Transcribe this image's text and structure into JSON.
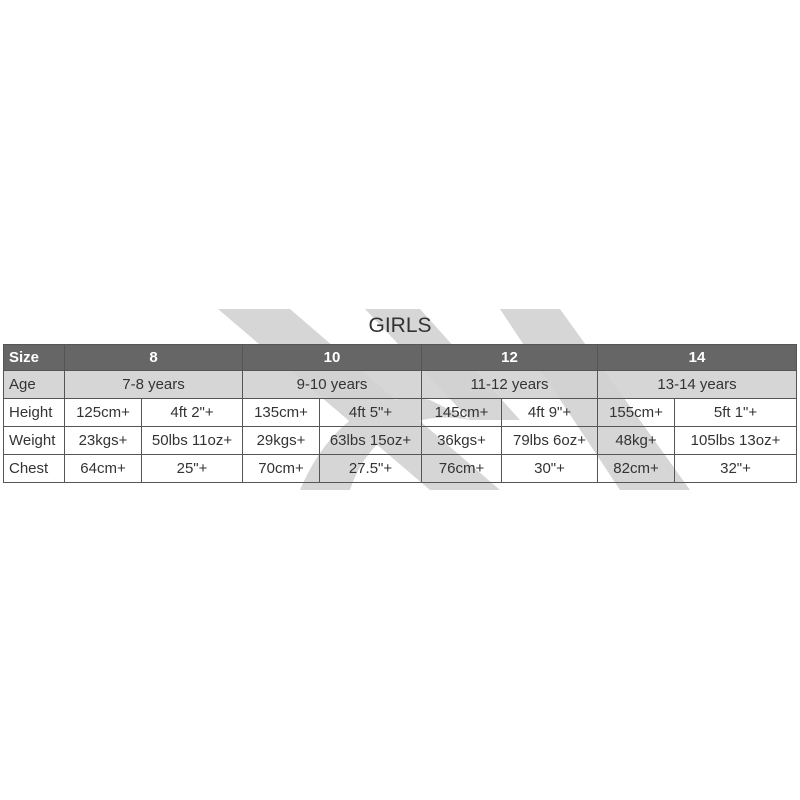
{
  "title": "GIRLS",
  "header": {
    "label": "Size",
    "sizes": [
      "8",
      "10",
      "12",
      "14"
    ]
  },
  "age": {
    "label": "Age",
    "values": [
      "7-8 years",
      "9-10 years",
      "11-12 years",
      "13-14 years"
    ]
  },
  "rows": [
    {
      "label": "Height",
      "values": [
        "125cm+",
        "4ft 2\"+",
        "135cm+",
        "4ft 5\"+",
        "145cm+",
        "4ft 9\"+",
        "155cm+",
        "5ft 1\"+"
      ]
    },
    {
      "label": "Weight",
      "values": [
        "23kgs+",
        "50lbs 11oz+",
        "29kgs+",
        "63lbs 15oz+",
        "36kgs+",
        "79lbs 6oz+",
        "48kg+",
        "105lbs 13oz+"
      ]
    },
    {
      "label": "Chest",
      "values": [
        "64cm+",
        "25\"+",
        "70cm+",
        "27.5\"+",
        "76cm+",
        "30\"+",
        "82cm+",
        "32\"+"
      ]
    }
  ],
  "colors": {
    "header_bg": "#666666",
    "age_bg": "#d8d8d8",
    "watermark": "#d4d4d4"
  }
}
